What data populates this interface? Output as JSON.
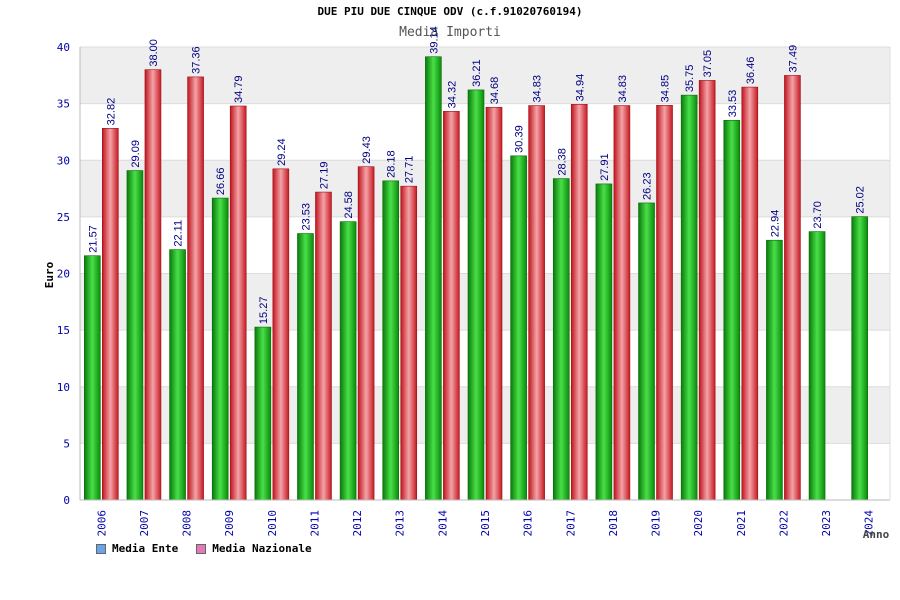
{
  "chart_data": {
    "type": "bar",
    "title": "DUE PIU DUE CINQUE ODV (c.f.91020760194)",
    "subtitle": "Media Importi",
    "xlabel": "Anno",
    "ylabel": "Euro",
    "ylim": [
      0,
      40
    ],
    "yticks": [
      0,
      5,
      10,
      15,
      20,
      25,
      30,
      35,
      40
    ],
    "categories": [
      "2006",
      "2007",
      "2008",
      "2009",
      "2010",
      "2011",
      "2012",
      "2013",
      "2014",
      "2015",
      "2016",
      "2017",
      "2018",
      "2019",
      "2020",
      "2021",
      "2022",
      "2023",
      "2024"
    ],
    "series": [
      {
        "name": "Media Ente",
        "color": "#1fae1f",
        "legend_color": "#6aa4e6",
        "values": [
          21.57,
          29.09,
          22.11,
          26.66,
          15.27,
          23.53,
          24.58,
          28.18,
          39.14,
          36.21,
          30.39,
          28.38,
          27.91,
          26.23,
          35.75,
          33.53,
          22.94,
          23.7,
          25.02
        ],
        "labels": [
          "21.57",
          "29.09",
          "22.11",
          "26.66",
          "15.27",
          "23.53",
          "24.58",
          "28.18",
          "39.14",
          "36.21",
          "30.39",
          "28.38",
          "27.91",
          "26.23",
          "35.75",
          "33.53",
          "22.94",
          "23.70",
          "25.02"
        ]
      },
      {
        "name": "Media Nazionale",
        "color": "#e8323c",
        "legend_color": "#e07ab8",
        "values": [
          32.82,
          38.0,
          37.36,
          34.79,
          29.24,
          27.19,
          29.43,
          27.71,
          34.32,
          34.68,
          34.83,
          34.94,
          34.83,
          34.85,
          37.05,
          36.46,
          37.49,
          null,
          null
        ],
        "labels": [
          "32.82",
          "38.00",
          "37.36",
          "34.79",
          "29.24",
          "27.19",
          "29.43",
          "27.71",
          "34.32",
          "34.68",
          "34.83",
          "34.94",
          "34.83",
          "34.85",
          "37.05",
          "36.46",
          "37.49",
          null,
          null
        ]
      }
    ],
    "grid": true,
    "legend_position": "bottom-left",
    "colors": {
      "axis_text": "#0000aa",
      "label_text": "#000080",
      "band": "#eeeeee",
      "grid": "#dcdcdc"
    }
  }
}
